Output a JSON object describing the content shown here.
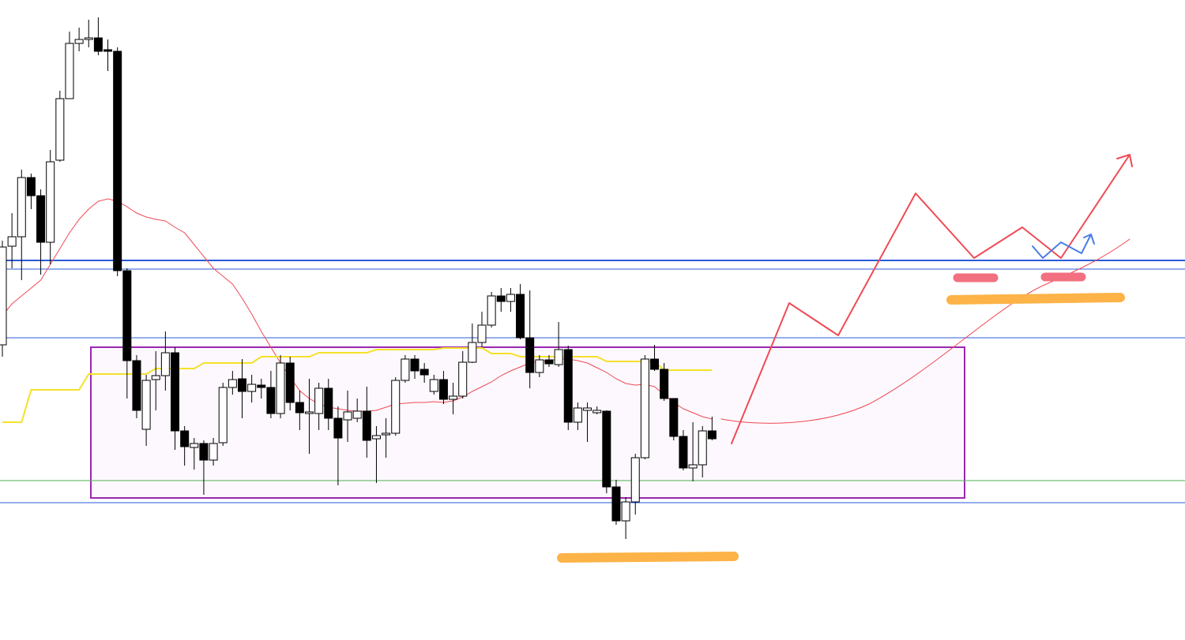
{
  "chart_data": {
    "type": "candlestick",
    "categories": [
      null,
      null,
      null,
      null,
      null,
      null,
      null,
      null,
      null,
      null,
      null,
      null,
      null,
      null,
      null,
      null,
      null,
      null,
      null,
      null,
      null,
      null,
      null,
      null,
      null,
      null,
      null,
      null,
      null,
      null,
      null,
      null,
      null,
      null,
      null,
      null,
      null,
      null,
      null,
      null,
      null,
      null,
      null,
      null,
      null,
      null,
      null,
      null,
      null,
      null,
      null,
      null,
      null,
      null,
      null,
      null,
      null,
      null,
      null,
      null,
      null,
      null,
      null,
      null,
      null,
      null,
      null,
      null,
      null,
      null,
      null,
      null,
      null,
      null,
      null
    ],
    "open": [
      374,
      499,
      511,
      586,
      563,
      504,
      608,
      686,
      756,
      761,
      763,
      748,
      746,
      468,
      354,
      267,
      330,
      335,
      364,
      265,
      244,
      249,
      228,
      250,
      320,
      331,
      315,
      323,
      320,
      287,
      351,
      301,
      287,
      287,
      319,
      281,
      279,
      281,
      290,
      255,
      260,
      262,
      329,
      356,
      343,
      315,
      330,
      305,
      309,
      352,
      377,
      399,
      436,
      429,
      438,
      383,
      339,
      355,
      349,
      368,
      276,
      291,
      288,
      290,
      194,
      151,
      175,
      231,
      356,
      343,
      306,
      258,
      218,
      222,
      265
    ],
    "high": [
      506,
      541,
      596,
      591,
      571,
      621,
      696,
      771,
      776,
      786,
      789,
      761,
      751,
      471,
      361,
      336,
      366,
      391,
      371,
      271,
      256,
      253,
      256,
      326,
      341,
      356,
      336,
      331,
      341,
      361,
      359,
      316,
      331,
      326,
      331,
      296,
      316,
      306,
      321,
      271,
      281,
      333,
      361,
      361,
      351,
      336,
      341,
      326,
      366,
      401,
      416,
      441,
      446,
      446,
      451,
      443,
      361,
      361,
      403,
      373,
      301,
      301,
      296,
      291,
      203,
      181,
      236,
      361,
      374,
      351,
      306,
      266,
      276,
      271,
      283
    ],
    "low": [
      359,
      471,
      456,
      546,
      463,
      476,
      606,
      686,
      746,
      751,
      741,
      721,
      461,
      306,
      281,
      246,
      291,
      316,
      241,
      221,
      216,
      184,
      221,
      246,
      311,
      281,
      301,
      306,
      281,
      281,
      291,
      266,
      236,
      266,
      266,
      196,
      251,
      276,
      231,
      199,
      231,
      259,
      326,
      331,
      326,
      311,
      299,
      286,
      306,
      351,
      371,
      396,
      416,
      416,
      381,
      319,
      333,
      346,
      346,
      266,
      266,
      251,
      286,
      186,
      146,
      128,
      159,
      229,
      341,
      303,
      253,
      215,
      201,
      206,
      253
    ],
    "close": [
      498,
      511,
      586,
      563,
      504,
      606,
      686,
      756,
      761,
      763,
      746,
      746,
      468,
      354,
      291,
      329,
      335,
      364,
      265,
      245,
      249,
      228,
      249,
      320,
      330,
      315,
      324,
      320,
      287,
      351,
      301,
      288,
      289,
      319,
      281,
      256,
      289,
      290,
      253,
      259,
      262,
      329,
      356,
      341,
      336,
      330,
      305,
      309,
      352,
      377,
      399,
      436,
      429,
      438,
      383,
      339,
      355,
      350,
      368,
      276,
      294,
      294,
      291,
      194,
      151,
      175,
      231,
      356,
      343,
      306,
      258,
      218,
      222,
      265,
      255
    ],
    "up_color": "#ffffff",
    "down_color": "#000000",
    "lines": [
      {
        "color": "#f04a55",
        "values": [
          411,
          426,
          436,
          446,
          456,
          476,
          496,
          516,
          533,
          546,
          556,
          559,
          556,
          549,
          541,
          536,
          533,
          531,
          523,
          516,
          501,
          486,
          471,
          461,
          451,
          433,
          413,
          391,
          371,
          351,
          333,
          316,
          306,
          299,
          295,
          293,
          291,
          290,
          290,
          291,
          295,
          299,
          300,
          301,
          301,
          302,
          301,
          303,
          308,
          315,
          321,
          327,
          335,
          341,
          346,
          351,
          353,
          354,
          356,
          356,
          354,
          351,
          345,
          339,
          331,
          325,
          323,
          324,
          321,
          311,
          301,
          293,
          288,
          283,
          280
        ]
      },
      {
        "color": "#f5e12a",
        "values": [
          276,
          276,
          276,
          317,
          317,
          317,
          317,
          317,
          317,
          337,
          337,
          337,
          337,
          337,
          337,
          337,
          344,
          344,
          344,
          344,
          344,
          351,
          351,
          351,
          351,
          351,
          351,
          359,
          359,
          359,
          359,
          359,
          359,
          364,
          364,
          364,
          364,
          364,
          364,
          368,
          368,
          368,
          368,
          368,
          368,
          368,
          370,
          370,
          370,
          370,
          370,
          363,
          363,
          363,
          359,
          359,
          359,
          359,
          359,
          359,
          359,
          359,
          359,
          353,
          353,
          353,
          353,
          353,
          353,
          342,
          342,
          342,
          342,
          342,
          342
        ]
      }
    ],
    "levels": [
      {
        "value": 481,
        "color": "#2a5bd7",
        "width": 2
      },
      {
        "value": 470,
        "color": "#2a5bd7",
        "width": 1
      },
      {
        "value": 383,
        "color": "#2a5bd7",
        "width": 1
      },
      {
        "value": 202,
        "color": "#4caf50",
        "width": 1
      },
      {
        "value": 174,
        "color": "#2a5bd7",
        "width": 1
      }
    ],
    "zone": {
      "range": [
        180,
        371
      ],
      "color": "#9c27b0"
    },
    "ylim": [
      0,
      811
    ]
  }
}
